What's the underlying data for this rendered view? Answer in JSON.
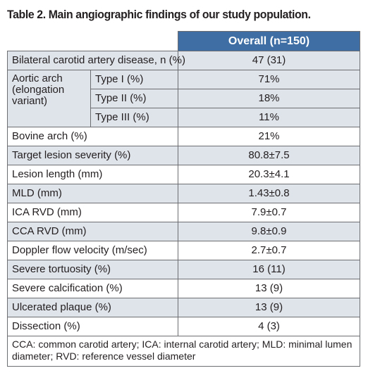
{
  "caption": "Table 2. Main angiographic findings of our study population.",
  "header": {
    "overall": "Overall (n=150)"
  },
  "rows_top": [
    {
      "label": "Bilateral carotid artery disease, n (%)",
      "value": "47 (31)"
    }
  ],
  "aortic_arch": {
    "label": "Aortic arch (elongation variant)",
    "types": [
      {
        "label": "Type I (%)",
        "value": "71%"
      },
      {
        "label": "Type II (%)",
        "value": "18%"
      },
      {
        "label": "Type III (%)",
        "value": "11%"
      }
    ]
  },
  "rows": [
    {
      "label": "Bovine arch (%)",
      "value": "21%"
    },
    {
      "label": "Target lesion severity (%)",
      "value": "80.8±7.5"
    },
    {
      "label": "Lesion length (mm)",
      "value": "20.3±4.1"
    },
    {
      "label": "MLD (mm)",
      "value": "1.43±0.8"
    },
    {
      "label": "ICA RVD (mm)",
      "value": "7.9±0.7"
    },
    {
      "label": "CCA RVD (mm)",
      "value": "9.8±0.9"
    },
    {
      "label": "Doppler flow velocity (m/sec)",
      "value": "2.7±0.7"
    },
    {
      "label": "Severe tortuosity (%)",
      "value": "16 (11)"
    },
    {
      "label": "Severe calcification (%)",
      "value": "13 (9)"
    },
    {
      "label": "Ulcerated plaque (%)",
      "value": "13 (9)"
    },
    {
      "label": "Dissection (%)",
      "value": "4 (3)"
    }
  ],
  "footnote": "CCA: common carotid artery; ICA: internal carotid artery; MLD: minimal lumen diameter; RVD: reference vessel diameter",
  "colors": {
    "header_bg": "#3e6ea3",
    "shade_bg": "#dfe3ea",
    "border": "#6d6e71"
  }
}
